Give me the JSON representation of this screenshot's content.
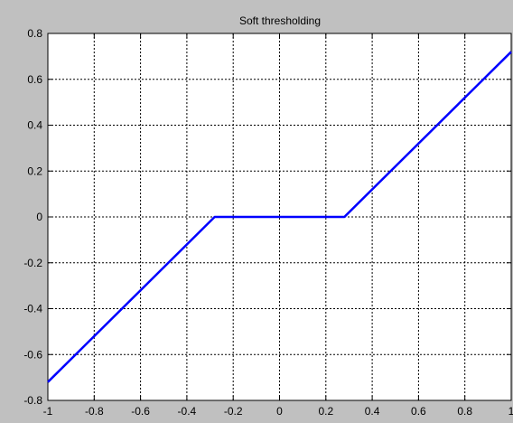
{
  "chart_data": {
    "type": "line",
    "title": "Soft thresholding",
    "xlabel": "",
    "ylabel": "",
    "xlim": [
      -1,
      1
    ],
    "ylim": [
      -0.8,
      0.8
    ],
    "grid": true,
    "x_ticks": [
      -1,
      -0.8,
      -0.6,
      -0.4,
      -0.2,
      0,
      0.2,
      0.4,
      0.6,
      0.8,
      1
    ],
    "y_ticks": [
      -0.8,
      -0.6,
      -0.4,
      -0.2,
      0,
      0.2,
      0.4,
      0.6,
      0.8
    ],
    "x_tick_labels": [
      "-1",
      "-0.8",
      "-0.6",
      "-0.4",
      "-0.2",
      "0",
      "0.2",
      "0.4",
      "0.6",
      "0.8",
      "1"
    ],
    "y_tick_labels": [
      "-0.8",
      "-0.6",
      "-0.4",
      "-0.2",
      "0",
      "0.2",
      "0.4",
      "0.6",
      "0.8"
    ],
    "series": [
      {
        "color": "#0000ff",
        "x": [
          -1,
          -0.28,
          0.28,
          1
        ],
        "y": [
          -0.72,
          0,
          0,
          0.72
        ]
      }
    ]
  },
  "colors": {
    "figure_background": "#c0c0c0",
    "axes_background": "#ffffff",
    "grid": "#000000",
    "line": "#0000ff"
  }
}
